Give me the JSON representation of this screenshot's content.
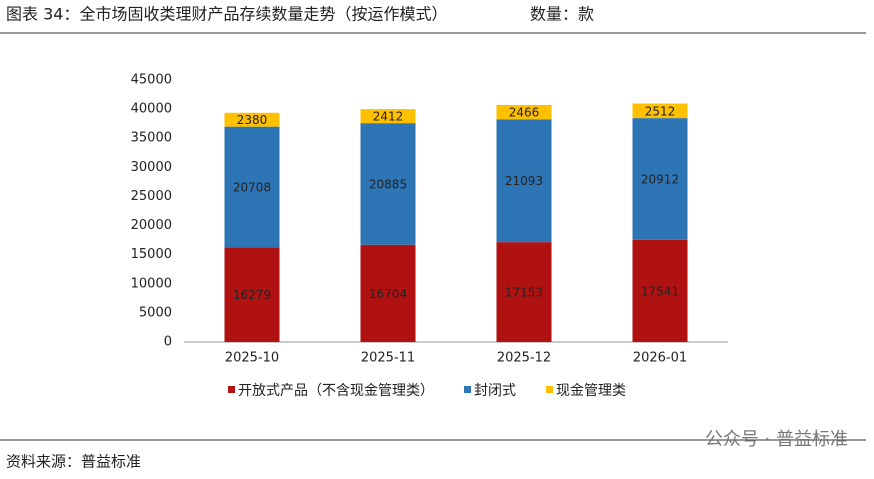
{
  "chart_data": {
    "type": "stacked-bar",
    "title": "图表 34：全市场固收类理财产品存续数量走势（按运作模式）",
    "subtitle": "数量：款",
    "categories": [
      "2025-10",
      "2025-11",
      "2025-12",
      "2026-01"
    ],
    "series": [
      {
        "name": "开放式产品（不含现金管理类）",
        "color": "#b01212",
        "values": [
          16279,
          16704,
          17153,
          17541
        ]
      },
      {
        "name": "封闭式",
        "color": "#2e75b6",
        "values": [
          20708,
          20885,
          21093,
          20912
        ]
      },
      {
        "name": "现金管理类",
        "color": "#ffc000",
        "values": [
          2380,
          2412,
          2466,
          2512
        ]
      }
    ],
    "ylim": [
      0,
      45000
    ],
    "yticks": [
      0,
      5000,
      10000,
      15000,
      20000,
      25000,
      30000,
      35000,
      40000,
      45000
    ],
    "grid": false,
    "legend": "bottom",
    "source": "资料来源：普益标准",
    "watermark": "公众号 · 普益标准"
  }
}
